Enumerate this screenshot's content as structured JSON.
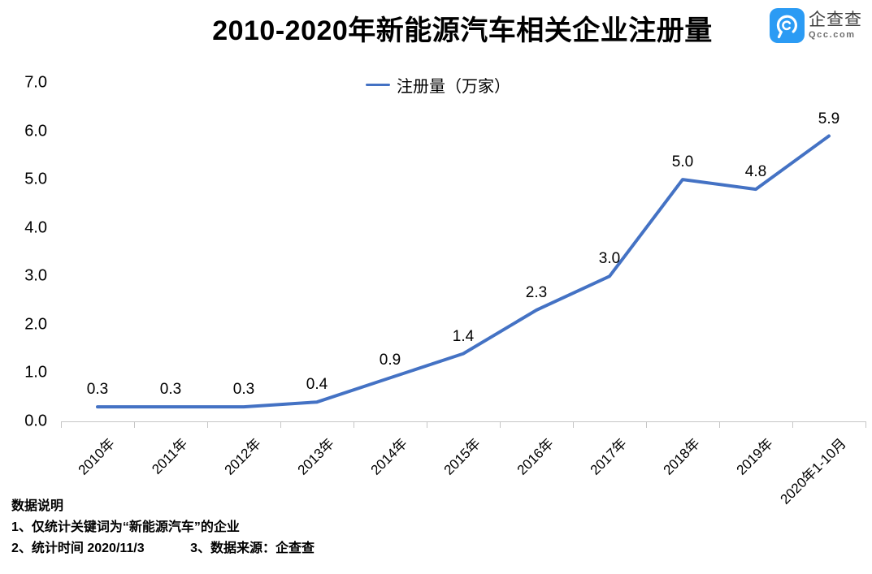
{
  "title": "2010-2020年新能源汽车相关企业注册量",
  "logo": {
    "name_cn": "企查查",
    "name_en": "Qcc.com",
    "brand_color": "#2b9bf4"
  },
  "legend": {
    "label": "注册量（万家）"
  },
  "chart_data": {
    "type": "line",
    "title": "2010-2020年新能源汽车相关企业注册量",
    "series_name": "注册量（万家）",
    "categories": [
      "2010年",
      "2011年",
      "2012年",
      "2013年",
      "2014年",
      "2015年",
      "2016年",
      "2017年",
      "2018年",
      "2019年",
      "2020年1-10月"
    ],
    "values": [
      0.3,
      0.3,
      0.3,
      0.4,
      0.9,
      1.4,
      2.3,
      3.0,
      5.0,
      4.8,
      5.9
    ],
    "data_labels": [
      "0.3",
      "0.3",
      "0.3",
      "0.4",
      "0.9",
      "1.4",
      "2.3",
      "3.0",
      "5.0",
      "4.8",
      "5.9"
    ],
    "ylim": [
      0,
      7
    ],
    "y_ticks": [
      "7.0",
      "6.0",
      "5.0",
      "4.0",
      "3.0",
      "2.0",
      "1.0",
      "0.0"
    ],
    "grid": false,
    "legend_position": "top-center",
    "line_color": "#4472c4",
    "axis_color": "#c6c6c6"
  },
  "notes": {
    "heading": "数据说明",
    "note1": "1、仅统计关键词为“新能源汽车”的企业",
    "note2": "2、统计时间 2020/11/3",
    "note3": "3、数据来源：企查查"
  }
}
